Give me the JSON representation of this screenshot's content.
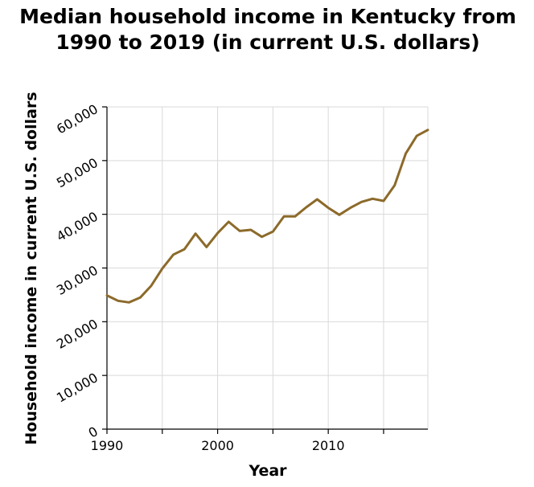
{
  "chart_data": {
    "type": "line",
    "title": "Median household income in Kentucky from 1990 to 2019 (in current U.S. dollars)",
    "title_lines": [
      "Median household income in Kentucky from",
      "1990 to 2019 (in current U.S. dollars)"
    ],
    "xlabel": "Year",
    "ylabel": "Household income in current U.S. dollars",
    "xlim": [
      1990,
      2019
    ],
    "ylim": [
      0,
      60000
    ],
    "x_ticks": [
      1990,
      1995,
      2000,
      2005,
      2010,
      2015
    ],
    "x_tick_labels": [
      "1990",
      "",
      "2000",
      "",
      "2010",
      ""
    ],
    "y_ticks": [
      0,
      10000,
      20000,
      30000,
      40000,
      50000,
      60000
    ],
    "y_tick_labels": [
      "0",
      "10,000",
      "20,000",
      "30,000",
      "40,000",
      "50,000",
      "60,000"
    ],
    "grid": true,
    "legend": "none",
    "series_color": "#8c6a2a",
    "series": [
      {
        "x": [
          1990,
          1991,
          1992,
          1993,
          1994,
          1995,
          1996,
          1997,
          1998,
          1999,
          2000,
          2001,
          2002,
          2003,
          2004,
          2005,
          2006,
          2007,
          2008,
          2009,
          2010,
          2011,
          2012,
          2013,
          2014,
          2015,
          2016,
          2017,
          2018,
          2019
        ],
        "values": [
          24900,
          23900,
          23600,
          24500,
          26700,
          29900,
          32500,
          33500,
          36400,
          33900,
          36500,
          38600,
          36900,
          37100,
          35800,
          36800,
          39600,
          39600,
          41300,
          42800,
          41200,
          39900,
          41200,
          42300,
          42900,
          42500,
          45400,
          51300,
          54600,
          55700
        ]
      }
    ]
  }
}
